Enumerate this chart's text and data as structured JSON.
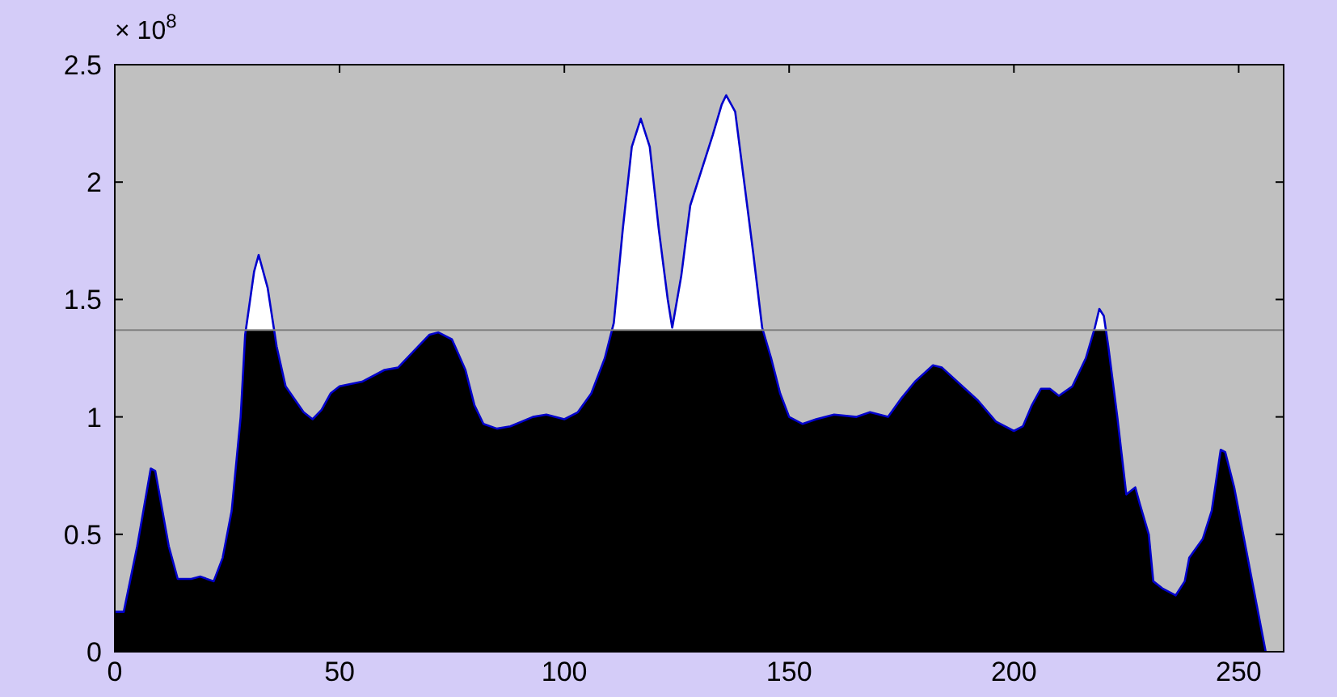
{
  "chart_data": {
    "type": "area",
    "x": [
      0,
      2,
      5,
      8,
      9,
      12,
      14,
      17,
      19,
      22,
      24,
      26,
      28,
      29,
      31,
      32,
      34,
      36,
      38,
      42,
      44,
      46,
      48,
      50,
      55,
      60,
      63,
      66,
      70,
      72,
      75,
      78,
      80,
      82,
      85,
      88,
      93,
      96,
      100,
      103,
      106,
      109,
      111,
      113,
      115,
      117,
      119,
      121,
      123,
      124,
      126,
      128,
      130,
      133,
      135,
      136,
      138,
      140,
      142,
      144,
      146,
      148,
      150,
      153,
      156,
      160,
      165,
      168,
      172,
      175,
      178,
      182,
      184,
      188,
      192,
      196,
      200,
      202,
      204,
      206,
      208,
      210,
      213,
      216,
      218,
      219,
      220,
      221,
      223,
      225,
      227,
      228,
      230,
      231,
      233,
      236,
      238,
      239,
      242,
      244,
      246,
      247,
      249,
      251,
      254,
      256
    ],
    "series": [
      {
        "color": "#000000",
        "values": [
          0.17,
          0.17,
          0.45,
          0.78,
          0.77,
          0.45,
          0.31,
          0.31,
          0.32,
          0.3,
          0.4,
          0.6,
          1.0,
          1.35,
          1.62,
          1.69,
          1.55,
          1.3,
          1.13,
          1.02,
          0.99,
          1.03,
          1.1,
          1.13,
          1.15,
          1.2,
          1.21,
          1.27,
          1.35,
          1.36,
          1.33,
          1.2,
          1.05,
          0.97,
          0.95,
          0.96,
          1.0,
          1.01,
          0.99,
          1.02,
          1.1,
          1.25,
          1.4,
          1.8,
          2.15,
          2.27,
          2.15,
          1.8,
          1.5,
          1.38,
          1.6,
          1.9,
          2.02,
          2.2,
          2.33,
          2.37,
          2.3,
          2.0,
          1.7,
          1.38,
          1.25,
          1.1,
          1.0,
          0.97,
          0.99,
          1.01,
          1.0,
          1.02,
          1.0,
          1.08,
          1.15,
          1.22,
          1.21,
          1.14,
          1.07,
          0.98,
          0.94,
          0.96,
          1.05,
          1.12,
          1.12,
          1.09,
          1.13,
          1.25,
          1.38,
          1.46,
          1.43,
          1.3,
          1.0,
          0.67,
          0.7,
          0.63,
          0.5,
          0.3,
          0.27,
          0.24,
          0.3,
          0.4,
          0.48,
          0.6,
          0.86,
          0.85,
          0.7,
          0.5,
          0.2,
          0.0
        ]
      }
    ],
    "xlim": [
      0,
      260
    ],
    "xticks": [
      0,
      50,
      100,
      150,
      200,
      250
    ],
    "ylim": [
      0,
      2.5
    ],
    "yticks": [
      0,
      0.5,
      1,
      1.5,
      2,
      2.5
    ],
    "ref_lines": [
      {
        "axis": "y",
        "value": 1.37,
        "color": "#808080"
      }
    ],
    "annotations": [
      "× 10$^{8}$"
    ]
  }
}
